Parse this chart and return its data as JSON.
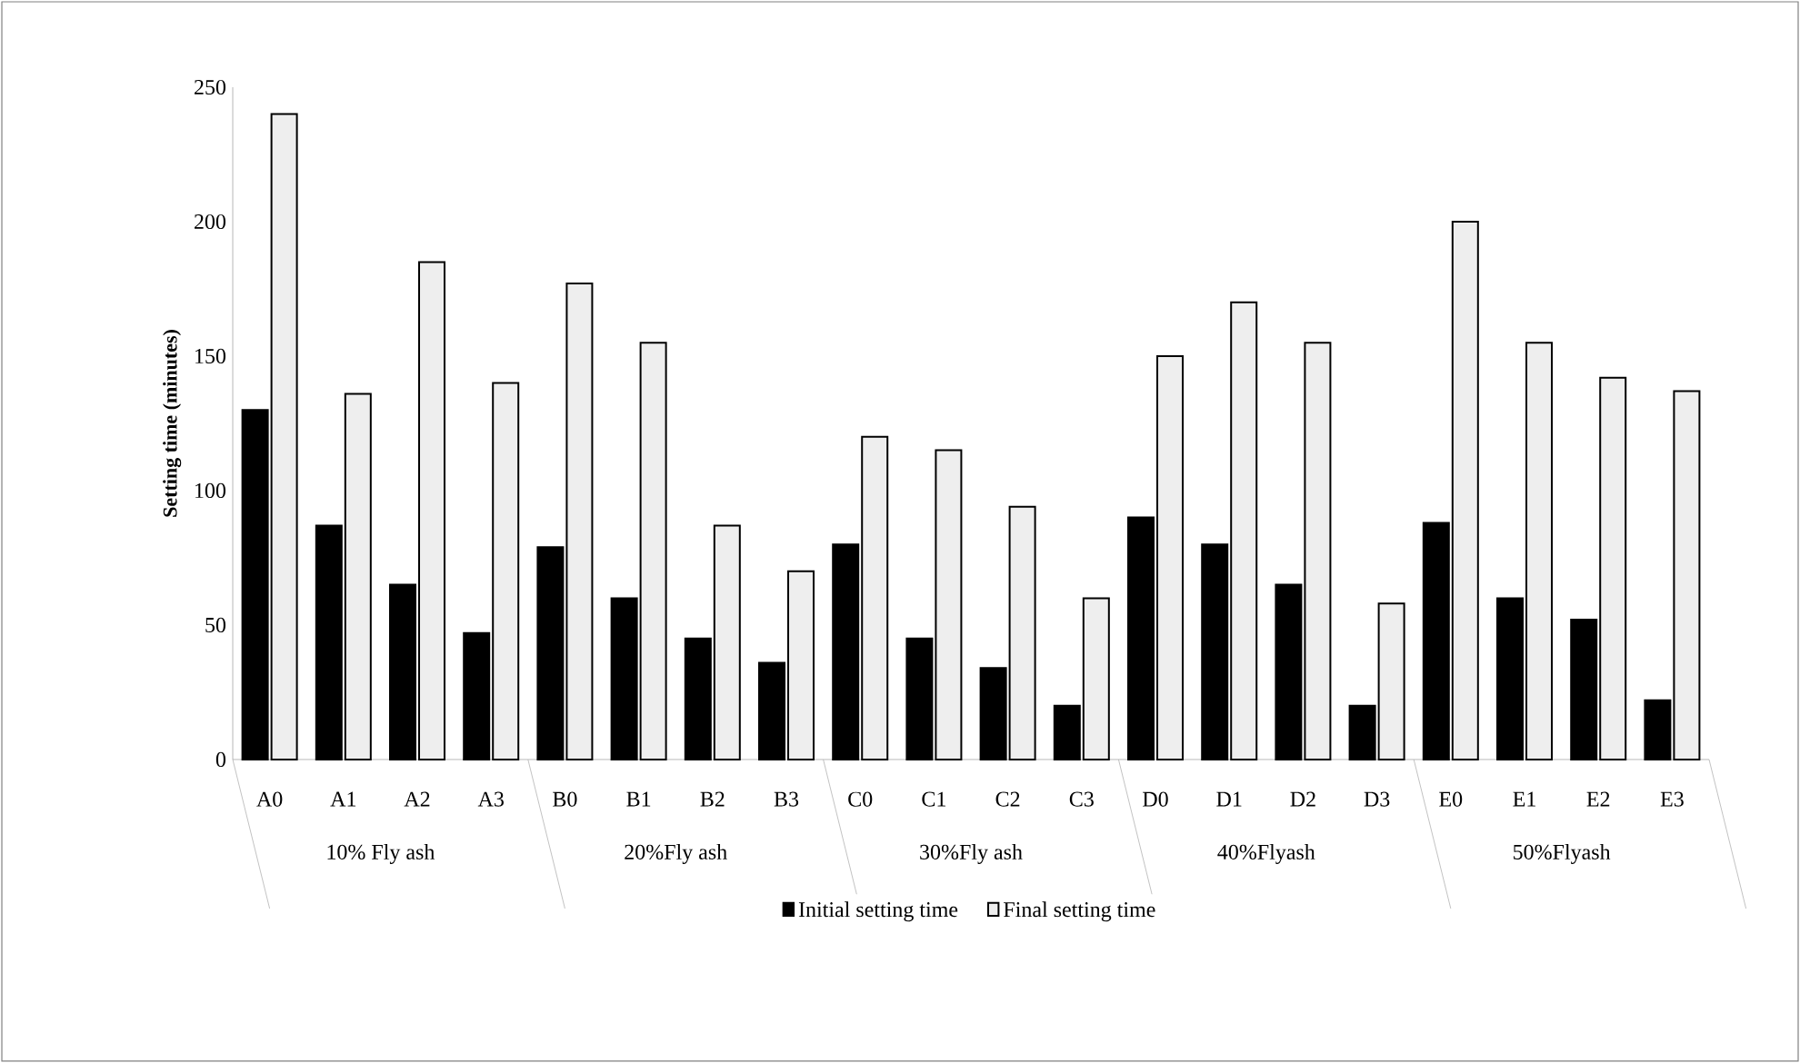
{
  "chart_data": {
    "type": "bar",
    "ylabel": "Setting time (minutes)",
    "categories": [
      "A0",
      "A1",
      "A2",
      "A3",
      "B0",
      "B1",
      "B2",
      "B3",
      "C0",
      "C1",
      "C2",
      "C3",
      "D0",
      "D1",
      "D2",
      "D3",
      "E0",
      "E1",
      "E2",
      "E3"
    ],
    "series": [
      {
        "name": "Initial setting time",
        "color": "#000000",
        "values": [
          130,
          87,
          65,
          47,
          79,
          60,
          45,
          36,
          80,
          45,
          34,
          20,
          90,
          80,
          65,
          20,
          88,
          60,
          52,
          22
        ]
      },
      {
        "name": "Final setting time",
        "color": "#eeeeee",
        "values": [
          240,
          136,
          185,
          140,
          177,
          155,
          87,
          70,
          120,
          115,
          94,
          60,
          150,
          170,
          155,
          58,
          200,
          155,
          142,
          137
        ]
      }
    ],
    "annotations": [
      "10%  Fly ash",
      "20%Fly ash",
      "30%Fly ash",
      "40%Flyash",
      "50%Flyash"
    ],
    "ylim": [
      0,
      250
    ],
    "yticks": [
      0,
      50,
      100,
      150,
      200,
      250
    ],
    "legend": "bottom",
    "grid": false
  }
}
